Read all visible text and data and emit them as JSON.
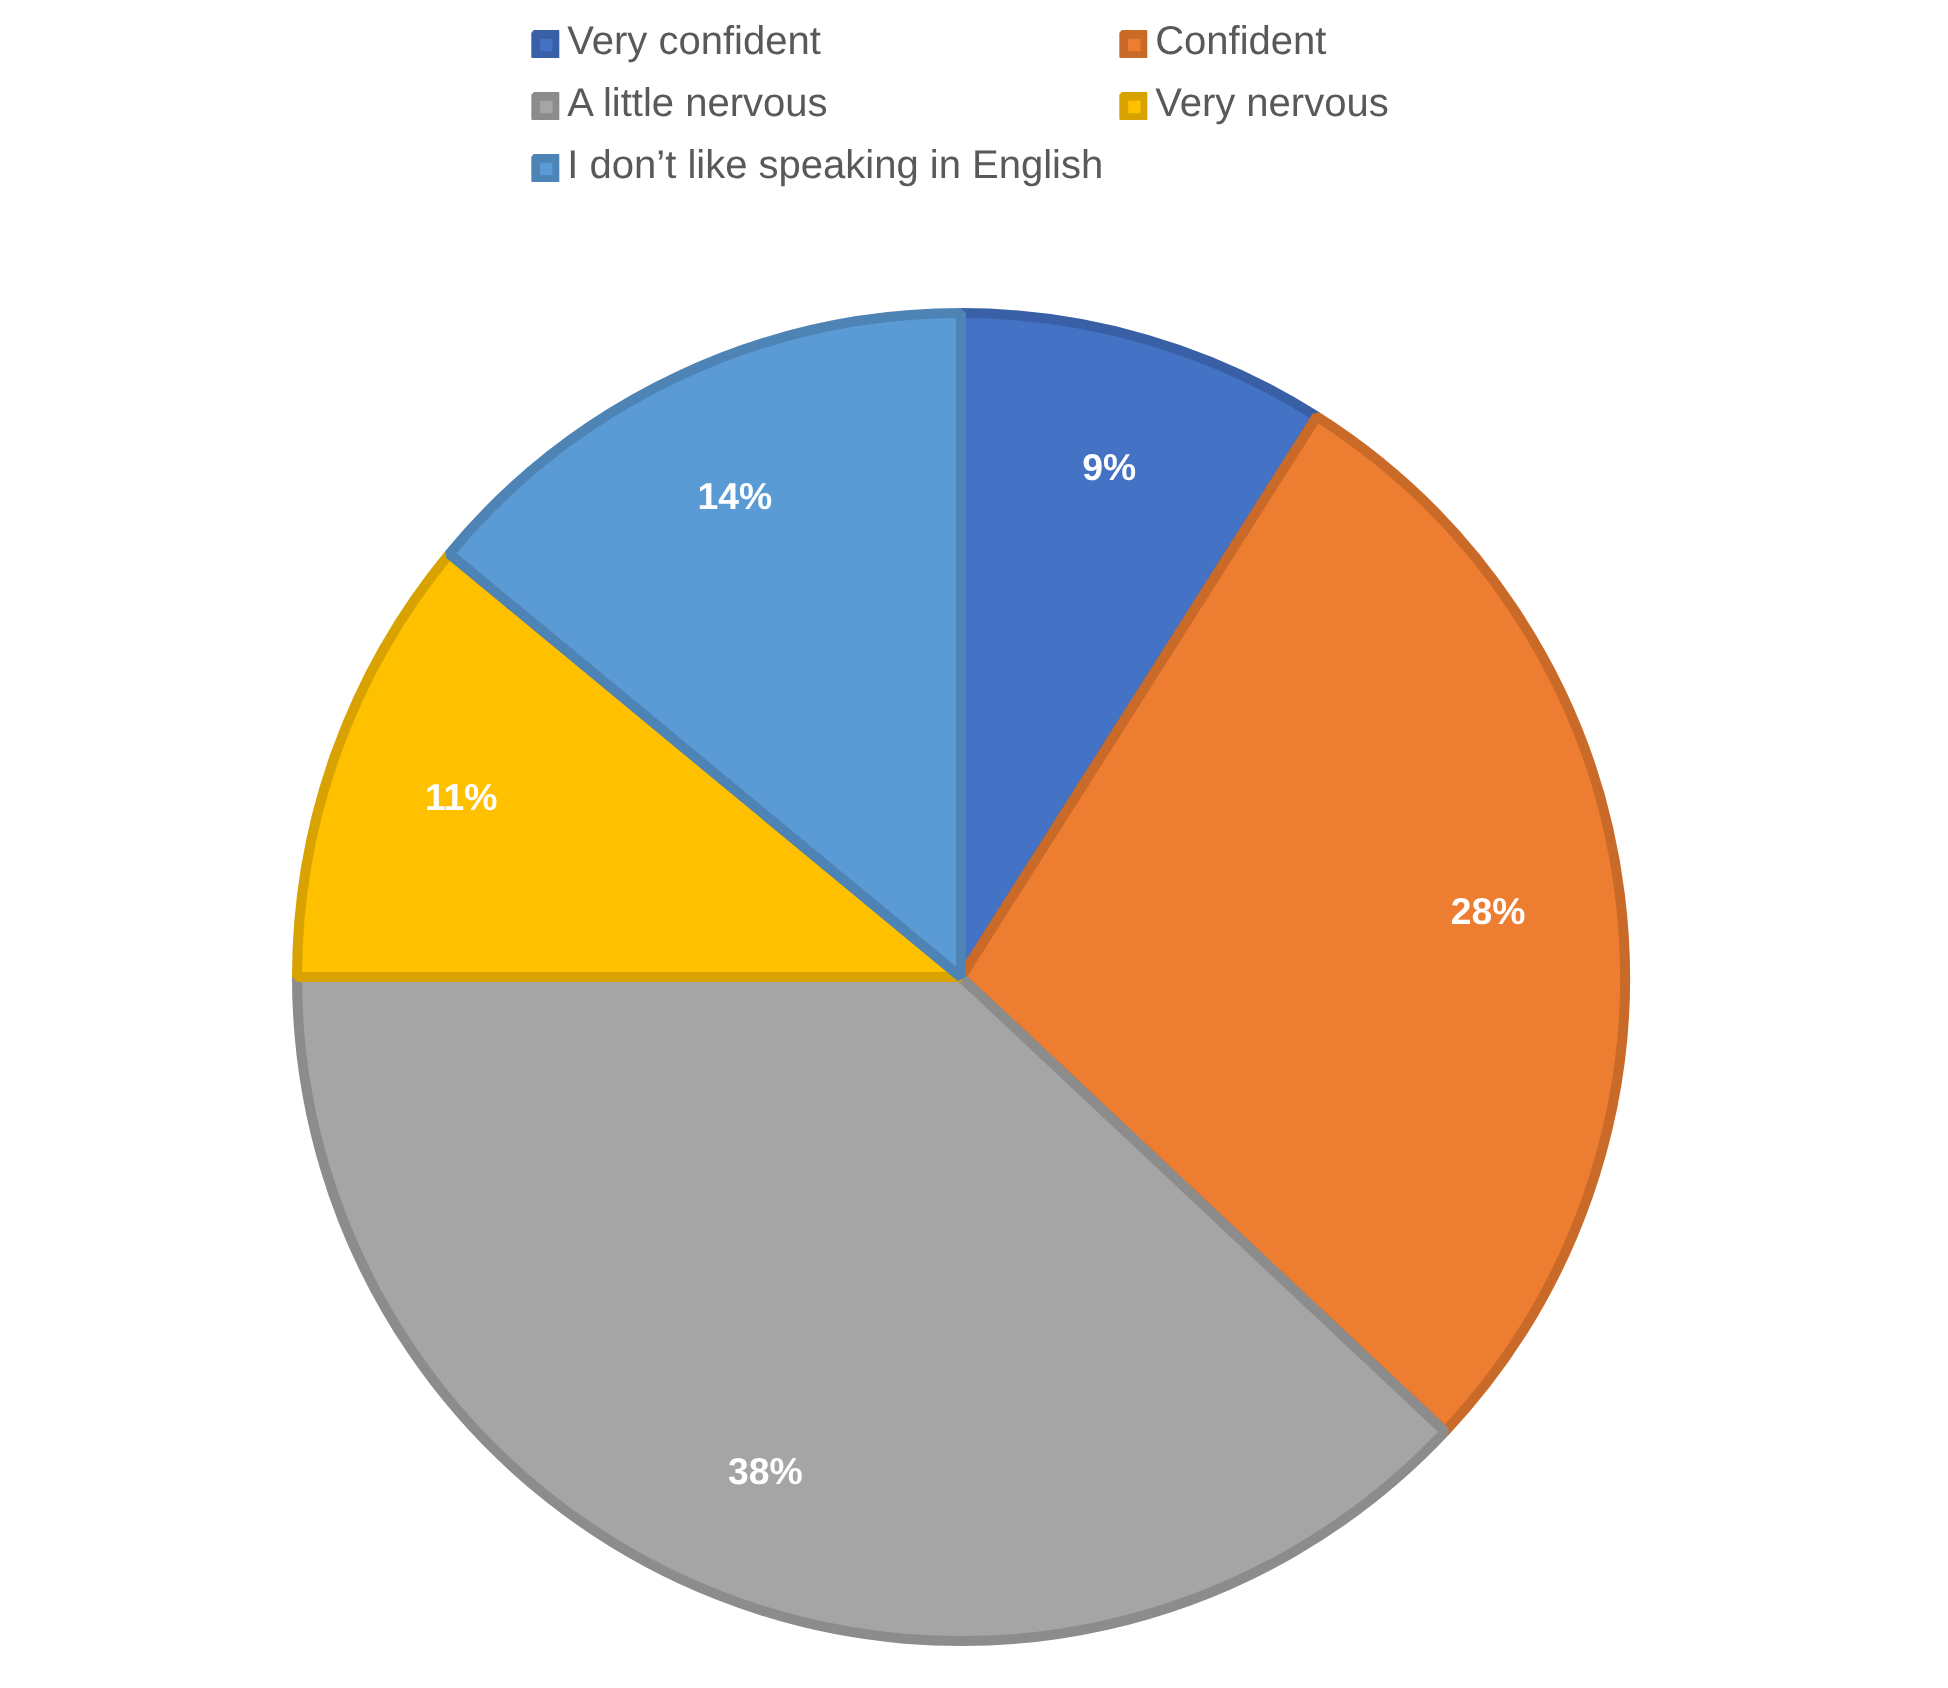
{
  "chart_data": {
    "type": "pie",
    "categories": [
      "Very confident",
      "Confident",
      "A little nervous",
      "Very nervous",
      "I don’t like speaking in English"
    ],
    "values": [
      9,
      28,
      38,
      11,
      14
    ],
    "colors": [
      "#4472c4",
      "#ed7d31",
      "#a5a5a5",
      "#ffc000",
      "#5b9bd5"
    ],
    "value_labels": [
      "9%",
      "28%",
      "38%",
      "11%",
      "14%"
    ],
    "legend": "top"
  }
}
